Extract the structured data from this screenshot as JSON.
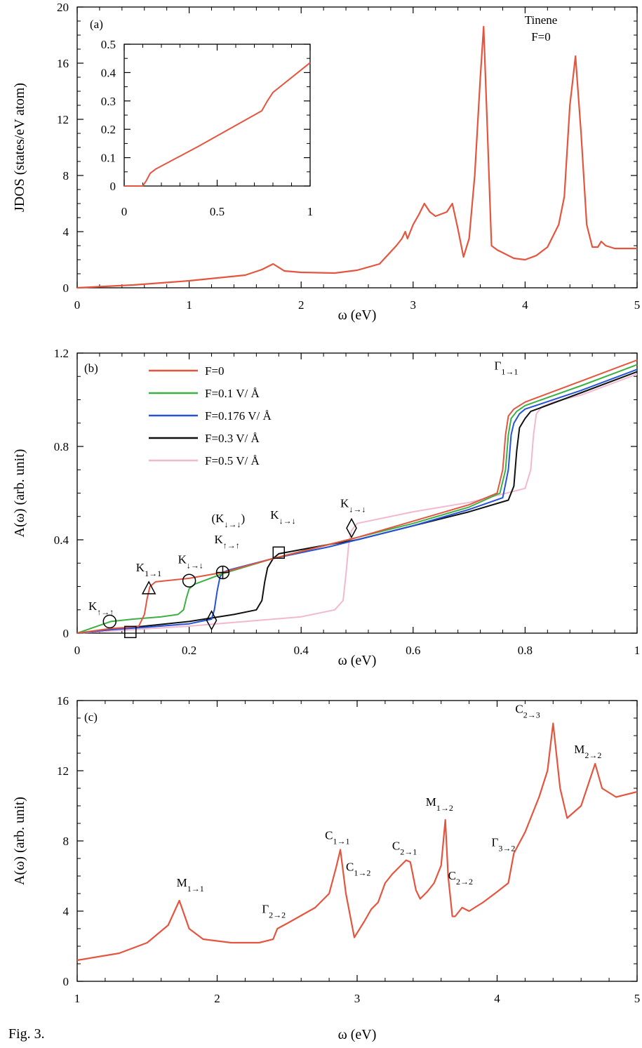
{
  "caption": "Fig. 3.",
  "colors": {
    "f0": "#e4553f",
    "f01": "#3cb043",
    "f0176": "#2553d6",
    "f03": "#111111",
    "f05": "#f2b8cf"
  },
  "chart_data": [
    {
      "type": "line",
      "panel": "(a)",
      "title": "Tinene",
      "subtitle": "F=0",
      "xlabel": "ω (eV)",
      "ylabel": "JDOS (states/eV atom)",
      "xlim": [
        0,
        5
      ],
      "ylim": [
        0,
        20
      ],
      "xticks": [
        "0",
        "1",
        "2",
        "3",
        "4",
        "5"
      ],
      "yticks": [
        "0",
        "4",
        "8",
        "12",
        "16",
        "20"
      ],
      "series": [
        {
          "color_key": "f0",
          "x": [
            0,
            0.5,
            1.0,
            1.5,
            1.65,
            1.75,
            1.85,
            2.0,
            2.3,
            2.5,
            2.7,
            2.85,
            2.9,
            2.93,
            2.95,
            3.0,
            3.05,
            3.1,
            3.15,
            3.2,
            3.3,
            3.35,
            3.4,
            3.45,
            3.5,
            3.55,
            3.6,
            3.63,
            3.66,
            3.7,
            3.75,
            3.8,
            3.9,
            4.0,
            4.1,
            4.2,
            4.3,
            4.35,
            4.4,
            4.45,
            4.5,
            4.55,
            4.6,
            4.65,
            4.68,
            4.72,
            4.8,
            5.0
          ],
          "y": [
            0,
            0.2,
            0.5,
            0.9,
            1.3,
            1.7,
            1.2,
            1.1,
            1.05,
            1.25,
            1.7,
            3.0,
            3.5,
            4.0,
            3.5,
            4.5,
            5.2,
            6.0,
            5.4,
            5.1,
            5.4,
            6.0,
            4.2,
            2.2,
            3.5,
            8.0,
            15.0,
            18.6,
            12.0,
            3.0,
            2.7,
            2.5,
            2.1,
            2.0,
            2.3,
            2.9,
            4.5,
            6.5,
            13.0,
            16.5,
            11.0,
            4.5,
            2.9,
            2.9,
            3.3,
            3.0,
            2.8,
            2.8
          ]
        }
      ],
      "inset": {
        "xlim": [
          0,
          1
        ],
        "ylim": [
          0,
          0.5
        ],
        "xticks": [
          "0",
          "0.5",
          "1"
        ],
        "yticks": [
          "0",
          "0.1",
          "0.2",
          "0.3",
          "0.4",
          "0.5"
        ],
        "x": [
          0,
          0.1,
          0.12,
          0.14,
          0.17,
          0.4,
          0.74,
          0.77,
          0.8,
          1.0
        ],
        "y": [
          0,
          0,
          0.02,
          0.045,
          0.06,
          0.14,
          0.265,
          0.3,
          0.33,
          0.435
        ]
      }
    },
    {
      "type": "line",
      "panel": "(b)",
      "xlabel": "ω (eV)",
      "ylabel": "A(ω) (arb. unit)",
      "xlim": [
        0,
        1
      ],
      "ylim": [
        0,
        1.2
      ],
      "xticks": [
        "0",
        "0.2",
        "0.4",
        "0.6",
        "0.8",
        "1"
      ],
      "yticks": [
        "0",
        "0.4",
        "0.8",
        "1.2"
      ],
      "series": [
        {
          "name": "F=0",
          "color_key": "f0",
          "x": [
            0,
            0.06,
            0.09,
            0.11,
            0.12,
            0.125,
            0.13,
            0.14,
            0.2,
            0.26,
            0.35,
            0.45,
            0.5,
            0.6,
            0.7,
            0.75,
            0.76,
            0.765,
            0.77,
            0.78,
            0.8,
            0.9,
            1.0
          ],
          "y": [
            0,
            0.02,
            0.025,
            0.03,
            0.08,
            0.15,
            0.2,
            0.22,
            0.235,
            0.26,
            0.32,
            0.38,
            0.41,
            0.48,
            0.55,
            0.6,
            0.7,
            0.85,
            0.93,
            0.96,
            0.99,
            1.08,
            1.17
          ]
        },
        {
          "name": "F=0.1 V/ Å",
          "color_key": "f01",
          "x": [
            0,
            0.06,
            0.1,
            0.15,
            0.18,
            0.19,
            0.195,
            0.2,
            0.21,
            0.26,
            0.35,
            0.45,
            0.5,
            0.6,
            0.7,
            0.755,
            0.765,
            0.77,
            0.775,
            0.785,
            0.8,
            0.9,
            1.0
          ],
          "y": [
            0,
            0.05,
            0.06,
            0.07,
            0.08,
            0.1,
            0.15,
            0.19,
            0.21,
            0.255,
            0.32,
            0.38,
            0.41,
            0.47,
            0.54,
            0.6,
            0.7,
            0.85,
            0.92,
            0.95,
            0.975,
            1.06,
            1.15
          ]
        },
        {
          "name": "F=0.176 V/ Å",
          "color_key": "f0176",
          "x": [
            0,
            0.06,
            0.12,
            0.2,
            0.24,
            0.245,
            0.25,
            0.255,
            0.26,
            0.27,
            0.35,
            0.45,
            0.5,
            0.6,
            0.7,
            0.76,
            0.77,
            0.775,
            0.78,
            0.79,
            0.8,
            0.9,
            1.0
          ],
          "y": [
            0,
            0.015,
            0.025,
            0.04,
            0.06,
            0.1,
            0.18,
            0.24,
            0.26,
            0.27,
            0.32,
            0.37,
            0.4,
            0.46,
            0.53,
            0.58,
            0.7,
            0.85,
            0.9,
            0.94,
            0.96,
            1.04,
            1.13
          ]
        },
        {
          "name": "F=0.3 V/ Å",
          "color_key": "f03",
          "x": [
            0,
            0.06,
            0.12,
            0.2,
            0.28,
            0.32,
            0.33,
            0.335,
            0.34,
            0.35,
            0.36,
            0.45,
            0.5,
            0.6,
            0.7,
            0.77,
            0.78,
            0.785,
            0.79,
            0.8,
            0.81,
            0.9,
            1.0
          ],
          "y": [
            0,
            0.015,
            0.03,
            0.05,
            0.08,
            0.1,
            0.14,
            0.22,
            0.28,
            0.32,
            0.34,
            0.38,
            0.4,
            0.46,
            0.52,
            0.57,
            0.63,
            0.78,
            0.88,
            0.92,
            0.95,
            1.03,
            1.12
          ]
        },
        {
          "name": "F=0.5 V/ Å",
          "color_key": "f05",
          "x": [
            0,
            0.1,
            0.2,
            0.3,
            0.4,
            0.46,
            0.475,
            0.48,
            0.485,
            0.49,
            0.5,
            0.6,
            0.7,
            0.8,
            0.81,
            0.815,
            0.82,
            0.83,
            0.85,
            0.9,
            1.0
          ],
          "y": [
            0,
            0.015,
            0.03,
            0.05,
            0.07,
            0.1,
            0.14,
            0.25,
            0.38,
            0.44,
            0.47,
            0.52,
            0.56,
            0.62,
            0.7,
            0.85,
            0.94,
            0.97,
            0.99,
            1.02,
            1.11
          ]
        }
      ],
      "annotations": [
        {
          "html": "K<sub>↑→↑</sub>",
          "x": 0.02,
          "y": 0.1
        },
        {
          "html": "K<sub>1→1</sub>",
          "x": 0.105,
          "y": 0.265
        },
        {
          "html": "K<sub>↓→↓</sub>",
          "x": 0.18,
          "y": 0.3
        },
        {
          "html": "(K<sub>↓→↓</sub>)",
          "x": 0.24,
          "y": 0.475
        },
        {
          "html": "K<sub>↑→↑</sub>",
          "x": 0.245,
          "y": 0.385
        },
        {
          "html": "K<sub>↓→↓</sub>",
          "x": 0.345,
          "y": 0.49
        },
        {
          "html": "K<sub>↓→↓</sub>",
          "x": 0.47,
          "y": 0.54
        },
        {
          "html": "Γ<sub>1→1</sub>",
          "x": 0.745,
          "y": 1.13
        }
      ],
      "markers": [
        {
          "shape": "circle",
          "x": 0.058,
          "y": 0.05
        },
        {
          "shape": "square",
          "x": 0.095,
          "y": 0.005
        },
        {
          "shape": "triangle",
          "x": 0.128,
          "y": 0.19
        },
        {
          "shape": "circle",
          "x": 0.2,
          "y": 0.225
        },
        {
          "shape": "diamond",
          "x": 0.24,
          "y": 0.055
        },
        {
          "shape": "circleplus",
          "x": 0.26,
          "y": 0.26
        },
        {
          "shape": "square",
          "x": 0.36,
          "y": 0.345
        },
        {
          "shape": "diamond",
          "x": 0.49,
          "y": 0.45
        }
      ]
    },
    {
      "type": "line",
      "panel": "(c)",
      "xlabel": "ω (eV)",
      "ylabel": "A(ω) (arb. unit)",
      "xlim": [
        1,
        5
      ],
      "ylim": [
        0,
        16
      ],
      "xticks": [
        "1",
        "2",
        "3",
        "4",
        "5"
      ],
      "yticks": [
        "0",
        "4",
        "8",
        "12",
        "16"
      ],
      "series": [
        {
          "color_key": "f0",
          "x": [
            1.0,
            1.3,
            1.5,
            1.65,
            1.73,
            1.8,
            1.9,
            2.1,
            2.3,
            2.4,
            2.43,
            2.5,
            2.7,
            2.8,
            2.85,
            2.88,
            2.92,
            2.98,
            3.05,
            3.1,
            3.15,
            3.2,
            3.25,
            3.3,
            3.35,
            3.38,
            3.42,
            3.45,
            3.5,
            3.55,
            3.6,
            3.63,
            3.65,
            3.68,
            3.7,
            3.75,
            3.8,
            3.9,
            4.0,
            4.08,
            4.12,
            4.2,
            4.3,
            4.36,
            4.4,
            4.45,
            4.5,
            4.6,
            4.7,
            4.75,
            4.85,
            5.0
          ],
          "y": [
            1.2,
            1.6,
            2.2,
            3.2,
            4.6,
            3.0,
            2.4,
            2.2,
            2.2,
            2.4,
            3.0,
            3.3,
            4.2,
            5.0,
            6.5,
            7.5,
            5.0,
            2.5,
            3.4,
            4.1,
            4.5,
            5.6,
            6.1,
            6.5,
            6.9,
            6.8,
            5.2,
            4.7,
            5.1,
            5.6,
            6.6,
            9.2,
            6.0,
            3.7,
            3.7,
            4.2,
            4.0,
            4.5,
            5.1,
            5.6,
            7.3,
            8.5,
            10.5,
            12.0,
            14.7,
            11.0,
            9.3,
            10.0,
            12.4,
            11.0,
            10.5,
            10.8
          ]
        }
      ],
      "annotations": [
        {
          "html": "M<sub>1→1</sub>",
          "x": 1.71,
          "y": 5.4
        },
        {
          "html": "Γ<sub>2→2</sub>",
          "x": 2.32,
          "y": 3.9
        },
        {
          "html": "C<sub>1→1</sub>",
          "x": 2.77,
          "y": 8.1
        },
        {
          "html": "C<sub>1→2</sub>",
          "x": 2.92,
          "y": 6.3
        },
        {
          "html": "C<sub>2→1</sub>",
          "x": 3.25,
          "y": 7.5
        },
        {
          "html": "M<sub>1→2</sub>",
          "x": 3.49,
          "y": 10.0
        },
        {
          "html": "C<sub>2→2</sub>",
          "x": 3.65,
          "y": 5.8
        },
        {
          "html": "Γ<sub>3→2</sub>",
          "x": 3.96,
          "y": 7.7
        },
        {
          "html": "C<sub>2→3</sub>",
          "x": 4.13,
          "y": 15.3
        },
        {
          "html": "M<sub>2→2</sub>",
          "x": 4.55,
          "y": 13.0
        }
      ]
    }
  ]
}
